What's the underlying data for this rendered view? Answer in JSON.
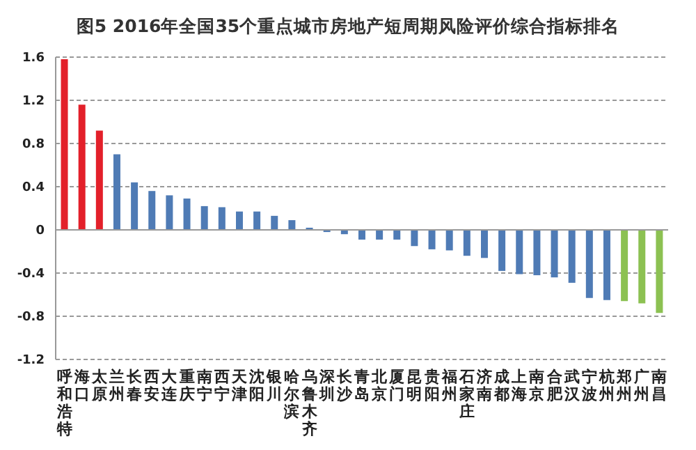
{
  "chart_data": {
    "type": "bar",
    "title": "图5  2016年全国35个重点城市房地产短周期风险评价综合指标排名",
    "categories": [
      "呼和浩特",
      "海口",
      "太原",
      "兰州",
      "长春",
      "西安",
      "大连",
      "重庆",
      "南宁",
      "西宁",
      "天津",
      "沈阳",
      "银川",
      "哈尔滨",
      "乌鲁木齐",
      "深圳",
      "长沙",
      "青岛",
      "北京",
      "厦门",
      "昆明",
      "贵阳",
      "福州",
      "石家庄",
      "济南",
      "成都",
      "上海",
      "南京",
      "合肥",
      "武汉",
      "宁波",
      "杭州",
      "郑州",
      "广州",
      "南昌"
    ],
    "values": [
      1.58,
      1.16,
      0.92,
      0.7,
      0.44,
      0.36,
      0.32,
      0.29,
      0.22,
      0.21,
      0.17,
      0.17,
      0.13,
      0.09,
      0.02,
      -0.02,
      -0.04,
      -0.09,
      -0.09,
      -0.09,
      -0.15,
      -0.18,
      -0.19,
      -0.24,
      -0.26,
      -0.38,
      -0.41,
      -0.42,
      -0.44,
      -0.49,
      -0.63,
      -0.65,
      -0.66,
      -0.68,
      -0.77
    ],
    "colors": [
      "#e3202a",
      "#e3202a",
      "#e3202a",
      "#4f7bb5",
      "#4f7bb5",
      "#4f7bb5",
      "#4f7bb5",
      "#4f7bb5",
      "#4f7bb5",
      "#4f7bb5",
      "#4f7bb5",
      "#4f7bb5",
      "#4f7bb5",
      "#4f7bb5",
      "#4f7bb5",
      "#4f7bb5",
      "#4f7bb5",
      "#4f7bb5",
      "#4f7bb5",
      "#4f7bb5",
      "#4f7bb5",
      "#4f7bb5",
      "#4f7bb5",
      "#4f7bb5",
      "#4f7bb5",
      "#4f7bb5",
      "#4f7bb5",
      "#4f7bb5",
      "#4f7bb5",
      "#4f7bb5",
      "#4f7bb5",
      "#4f7bb5",
      "#8cc152",
      "#8cc152",
      "#8cc152"
    ],
    "ylim": [
      -1.2,
      1.6
    ],
    "yticks": [
      -1.2,
      -0.8,
      -0.4,
      0,
      0.4,
      0.8,
      1.2,
      1.6
    ],
    "grid": "y"
  }
}
